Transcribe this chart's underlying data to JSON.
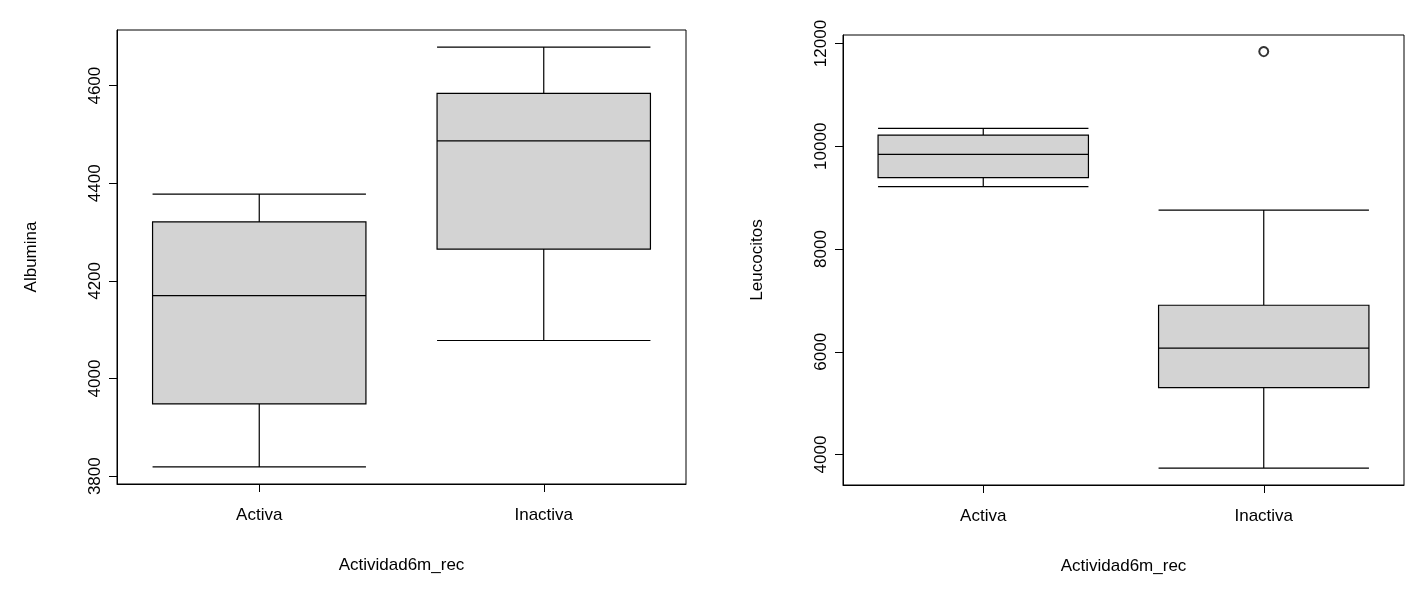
{
  "chart_data": [
    {
      "type": "box",
      "xlabel": "Actividad6m_rec",
      "ylabel": "Albumina",
      "categories": [
        "Activa",
        "Inactiva"
      ],
      "ylim": [
        3784,
        4714
      ],
      "yticks": [
        3800,
        4000,
        4200,
        4400,
        4600
      ],
      "series": [
        {
          "color": "#d3d3d3",
          "boxes": [
            {
              "low": 3819,
              "q1": 3948,
              "median": 4170,
              "q3": 4321,
              "high": 4378
            },
            {
              "low": 4078,
              "q1": 4265,
              "median": 4487,
              "q3": 4584,
              "high": 4679
            }
          ]
        }
      ]
    },
    {
      "type": "box",
      "xlabel": "Actividad6m_rec",
      "ylabel": "Leucocitos",
      "categories": [
        "Activa",
        "Inactiva"
      ],
      "ylim": [
        3407,
        12166
      ],
      "yticks": [
        4000,
        6000,
        8000,
        10000,
        12000
      ],
      "series": [
        {
          "color": "#d3d3d3",
          "boxes": [
            {
              "low": 9216,
              "q1": 9390,
              "median": 9843,
              "q3": 10218,
              "high": 10350
            },
            {
              "low": 3735,
              "q1": 5303,
              "median": 6070,
              "q3": 6906,
              "high": 8758,
              "outliers": [
                11843
              ]
            }
          ]
        }
      ]
    }
  ]
}
